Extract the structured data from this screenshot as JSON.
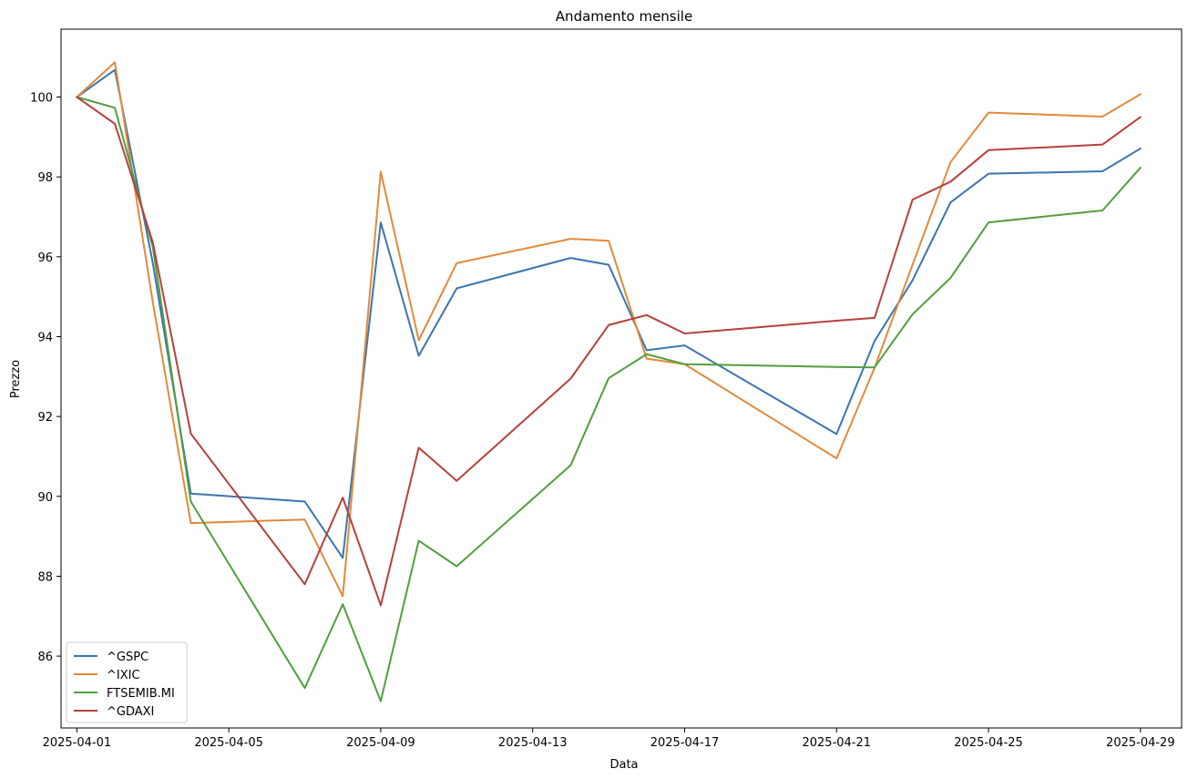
{
  "chart_data": {
    "type": "line",
    "title": "Andamento mensile",
    "xlabel": "Data",
    "ylabel": "Prezzo",
    "x": [
      "2025-04-01",
      "2025-04-02",
      "2025-04-03",
      "2025-04-04",
      "2025-04-07",
      "2025-04-08",
      "2025-04-09",
      "2025-04-10",
      "2025-04-11",
      "2025-04-14",
      "2025-04-15",
      "2025-04-16",
      "2025-04-17",
      "2025-04-21",
      "2025-04-22",
      "2025-04-23",
      "2025-04-24",
      "2025-04-25",
      "2025-04-28",
      "2025-04-29"
    ],
    "xlim": [
      "2025-03-31T14:00",
      "2025-04-30T02:00"
    ],
    "ylim": [
      84.2,
      101.7
    ],
    "x_ticks": [
      "2025-04-01",
      "2025-04-05",
      "2025-04-09",
      "2025-04-13",
      "2025-04-17",
      "2025-04-21",
      "2025-04-25",
      "2025-04-29"
    ],
    "y_ticks": [
      86,
      88,
      90,
      92,
      94,
      96,
      98,
      100
    ],
    "grid": false,
    "legend_position": "lower-left",
    "series": [
      {
        "name": "^GSPC",
        "color": "#3b75af",
        "values": [
          100.0,
          100.68,
          95.84,
          90.07,
          89.87,
          88.46,
          96.86,
          93.52,
          95.21,
          95.97,
          95.8,
          93.66,
          93.78,
          91.56,
          93.89,
          95.41,
          97.36,
          98.08,
          98.14,
          98.71
        ]
      },
      {
        "name": "^IXIC",
        "color": "#e2893b",
        "values": [
          100.0,
          100.87,
          94.86,
          89.33,
          89.42,
          87.5,
          98.13,
          93.91,
          95.84,
          96.45,
          96.4,
          93.45,
          93.31,
          90.95,
          93.22,
          95.8,
          98.37,
          99.61,
          99.51,
          100.07
        ]
      },
      {
        "name": "FTSEMIB.MI",
        "color": "#519e3e",
        "values": [
          100.0,
          99.73,
          96.24,
          89.87,
          85.2,
          87.3,
          84.87,
          88.89,
          88.25,
          90.78,
          92.96,
          93.56,
          93.31,
          93.24,
          93.23,
          94.56,
          95.47,
          96.86,
          97.16,
          98.23
        ]
      },
      {
        "name": "^GDAXI",
        "color": "#b5413b",
        "values": [
          100.0,
          99.33,
          96.36,
          91.57,
          87.8,
          89.97,
          87.27,
          91.22,
          90.39,
          92.95,
          94.29,
          94.54,
          94.08,
          94.4,
          94.47,
          97.43,
          97.88,
          98.67,
          98.81,
          99.5
        ]
      }
    ]
  }
}
